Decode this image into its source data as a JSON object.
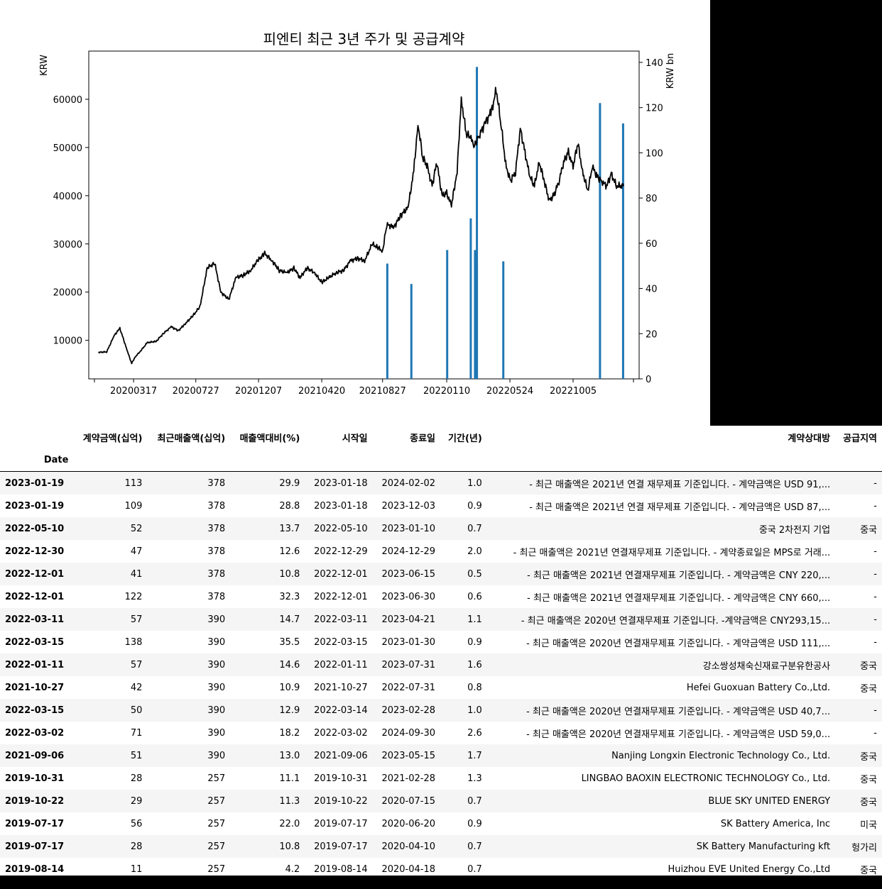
{
  "chart_data": {
    "type": "line+bar",
    "title": "피엔티 최근 3년 주가 및 공급계약",
    "ylabel_left": "KRW",
    "ylabel_right": "KRW bn",
    "xticks": [
      "20200317",
      "20200727",
      "20201207",
      "20210420",
      "20210827",
      "20220110",
      "20220524",
      "20221005"
    ],
    "yticks_left": [
      10000,
      20000,
      30000,
      40000,
      50000,
      60000
    ],
    "yticks_right": [
      0,
      20,
      40,
      60,
      80,
      100,
      120,
      140
    ],
    "ylim_left": [
      2000,
      70000
    ],
    "ylim_right": [
      0,
      145
    ],
    "xlim": [
      "2019-12-13",
      "2023-02-22"
    ],
    "price_series": {
      "name": "",
      "x": [
        "2020-01-02",
        "2020-01-20",
        "2020-02-05",
        "2020-02-17",
        "2020-03-03",
        "2020-03-13",
        "2020-03-20",
        "2020-04-01",
        "2020-04-15",
        "2020-05-04",
        "2020-05-20",
        "2020-06-05",
        "2020-06-20",
        "2020-07-05",
        "2020-07-20",
        "2020-08-05",
        "2020-08-20",
        "2020-09-05",
        "2020-09-18",
        "2020-10-05",
        "2020-10-20",
        "2020-11-05",
        "2020-11-20",
        "2020-12-05",
        "2020-12-20",
        "2021-01-05",
        "2021-01-20",
        "2021-02-05",
        "2021-02-20",
        "2021-03-05",
        "2021-03-20",
        "2021-04-05",
        "2021-04-20",
        "2021-05-05",
        "2021-05-20",
        "2021-06-05",
        "2021-06-20",
        "2021-07-05",
        "2021-07-20",
        "2021-08-05",
        "2021-08-20",
        "2021-08-27",
        "2021-09-05",
        "2021-09-20",
        "2021-10-05",
        "2021-10-20",
        "2021-11-01",
        "2021-11-10",
        "2021-11-20",
        "2021-11-30",
        "2021-12-10",
        "2021-12-20",
        "2021-12-31",
        "2022-01-10",
        "2022-01-20",
        "2022-02-01",
        "2022-02-10",
        "2022-02-20",
        "2022-03-01",
        "2022-03-10",
        "2022-03-20",
        "2022-04-01",
        "2022-04-15",
        "2022-04-25",
        "2022-05-05",
        "2022-05-15",
        "2022-05-25",
        "2022-06-05",
        "2022-06-15",
        "2022-06-25",
        "2022-07-05",
        "2022-07-15",
        "2022-07-25",
        "2022-08-05",
        "2022-08-15",
        "2022-08-25",
        "2022-09-05",
        "2022-09-15",
        "2022-09-25",
        "2022-10-05",
        "2022-10-15",
        "2022-10-25",
        "2022-11-05",
        "2022-11-15",
        "2022-11-25",
        "2022-12-05",
        "2022-12-15",
        "2022-12-25",
        "2023-01-05",
        "2023-01-20"
      ],
      "values": [
        7500,
        7600,
        11000,
        12500,
        8000,
        5200,
        6500,
        7800,
        9500,
        9800,
        11500,
        12800,
        12000,
        13500,
        15000,
        17000,
        25000,
        26000,
        20000,
        18500,
        23000,
        23500,
        24500,
        26500,
        28000,
        26500,
        24500,
        24000,
        25000,
        23000,
        25000,
        24000,
        22000,
        23000,
        24000,
        24500,
        26500,
        27000,
        26500,
        30000,
        29000,
        28500,
        34000,
        33500,
        36000,
        37500,
        45000,
        55000,
        48000,
        46000,
        42000,
        47000,
        40000,
        40500,
        38000,
        45000,
        60000,
        53000,
        52000,
        50500,
        52500,
        55000,
        57500,
        62000,
        55000,
        46500,
        43000,
        45000,
        54000,
        49000,
        44000,
        42000,
        47000,
        43000,
        39000,
        40000,
        43000,
        47000,
        49000,
        46000,
        51000,
        45000,
        41000,
        46000,
        44000,
        43000,
        42000,
        44500,
        42000,
        42000
      ],
      "color": "#000000"
    },
    "contract_bars": {
      "name": "",
      "x": [
        "2021-09-06",
        "2021-10-27",
        "2022-01-11",
        "2022-03-02",
        "2022-03-11",
        "2022-03-15",
        "2022-03-15",
        "2022-05-10",
        "2022-12-01",
        "2023-01-19"
      ],
      "values": [
        51,
        42,
        57,
        71,
        57,
        50,
        138,
        52,
        122,
        113
      ],
      "color": "#1f77b4"
    }
  },
  "table": {
    "index_label": "Date",
    "columns": [
      "계약금액(십억)",
      "최근매출액(십억)",
      "매출액대비(%)",
      "시작일",
      "종료일",
      "기간(년)",
      "계약상대방",
      "공급지역"
    ],
    "rows": [
      [
        "2023-01-19",
        "113",
        "378",
        "29.9",
        "2023-01-18",
        "2024-02-02",
        "1.0",
        "- 최근 매출액은 2021년 연결 재무제표 기준입니다. - 계약금액은 USD 91,...",
        "-"
      ],
      [
        "2023-01-19",
        "109",
        "378",
        "28.8",
        "2023-01-18",
        "2023-12-03",
        "0.9",
        "- 최근 매출액은 2021년 연결 재무제표 기준입니다. - 계약금액은 USD 87,...",
        "-"
      ],
      [
        "2022-05-10",
        "52",
        "378",
        "13.7",
        "2022-05-10",
        "2023-01-10",
        "0.7",
        "중국 2차전지 기업",
        "중국"
      ],
      [
        "2022-12-30",
        "47",
        "378",
        "12.6",
        "2022-12-29",
        "2024-12-29",
        "2.0",
        "- 최근 매출액은 2021년 연결재무제표 기준입니다. - 계약종료일은 MPS로 거래...",
        "-"
      ],
      [
        "2022-12-01",
        "41",
        "378",
        "10.8",
        "2022-12-01",
        "2023-06-15",
        "0.5",
        "- 최근 매출액은 2021년 연결재무제표 기준입니다. - 계약금액은 CNY 220,...",
        "-"
      ],
      [
        "2022-12-01",
        "122",
        "378",
        "32.3",
        "2022-12-01",
        "2023-06-30",
        "0.6",
        "- 최근 매출액은 2021년 연결재무제표 기준입니다. - 계약금액은 CNY 660,...",
        "-"
      ],
      [
        "2022-03-11",
        "57",
        "390",
        "14.7",
        "2022-03-11",
        "2023-04-21",
        "1.1",
        "- 최근 매출액은 2020년 연결재무제표 기준입니다. -계약금액은 CNY293,15...",
        "-"
      ],
      [
        "2022-03-15",
        "138",
        "390",
        "35.5",
        "2022-03-15",
        "2023-01-30",
        "0.9",
        "- 최근 매출액은 2020년 연결재무제표 기준입니다. - 계약금액은 USD 111,...",
        "-"
      ],
      [
        "2022-01-11",
        "57",
        "390",
        "14.6",
        "2022-01-11",
        "2023-07-31",
        "1.6",
        "강소쌍성채숙신재료구분유한공사",
        "중국"
      ],
      [
        "2021-10-27",
        "42",
        "390",
        "10.9",
        "2021-10-27",
        "2022-07-31",
        "0.8",
        "Hefei Guoxuan Battery Co.,Ltd.",
        "중국"
      ],
      [
        "2022-03-15",
        "50",
        "390",
        "12.9",
        "2022-03-14",
        "2023-02-28",
        "1.0",
        "- 최근 매출액은 2020년 연결재무제표 기준입니다. - 계약금액은 USD 40,7...",
        "-"
      ],
      [
        "2022-03-02",
        "71",
        "390",
        "18.2",
        "2022-03-02",
        "2024-09-30",
        "2.6",
        "- 최근 매출액은 2020년 연결재무제표 기준입니다. - 계약금액은 USD 59,0...",
        "-"
      ],
      [
        "2021-09-06",
        "51",
        "390",
        "13.0",
        "2021-09-06",
        "2023-05-15",
        "1.7",
        "Nanjing Longxin Electronic Technology Co., Ltd.",
        "중국"
      ],
      [
        "2019-10-31",
        "28",
        "257",
        "11.1",
        "2019-10-31",
        "2021-02-28",
        "1.3",
        "LINGBAO BAOXIN ELECTRONIC TECHNOLOGY Co., Ltd.",
        "중국"
      ],
      [
        "2019-10-22",
        "29",
        "257",
        "11.3",
        "2019-10-22",
        "2020-07-15",
        "0.7",
        "BLUE SKY UNITED ENERGY",
        "중국"
      ],
      [
        "2019-07-17",
        "56",
        "257",
        "22.0",
        "2019-07-17",
        "2020-06-20",
        "0.9",
        "SK Battery America, Inc",
        "미국"
      ],
      [
        "2019-07-17",
        "28",
        "257",
        "10.8",
        "2019-07-17",
        "2020-04-10",
        "0.7",
        "SK Battery Manufacturing kft",
        "헝가리"
      ],
      [
        "2019-08-14",
        "11",
        "257",
        "4.2",
        "2019-08-14",
        "2020-04-18",
        "0.7",
        "Huizhou EVE United Energy Co.,Ltd",
        "중국"
      ]
    ]
  }
}
